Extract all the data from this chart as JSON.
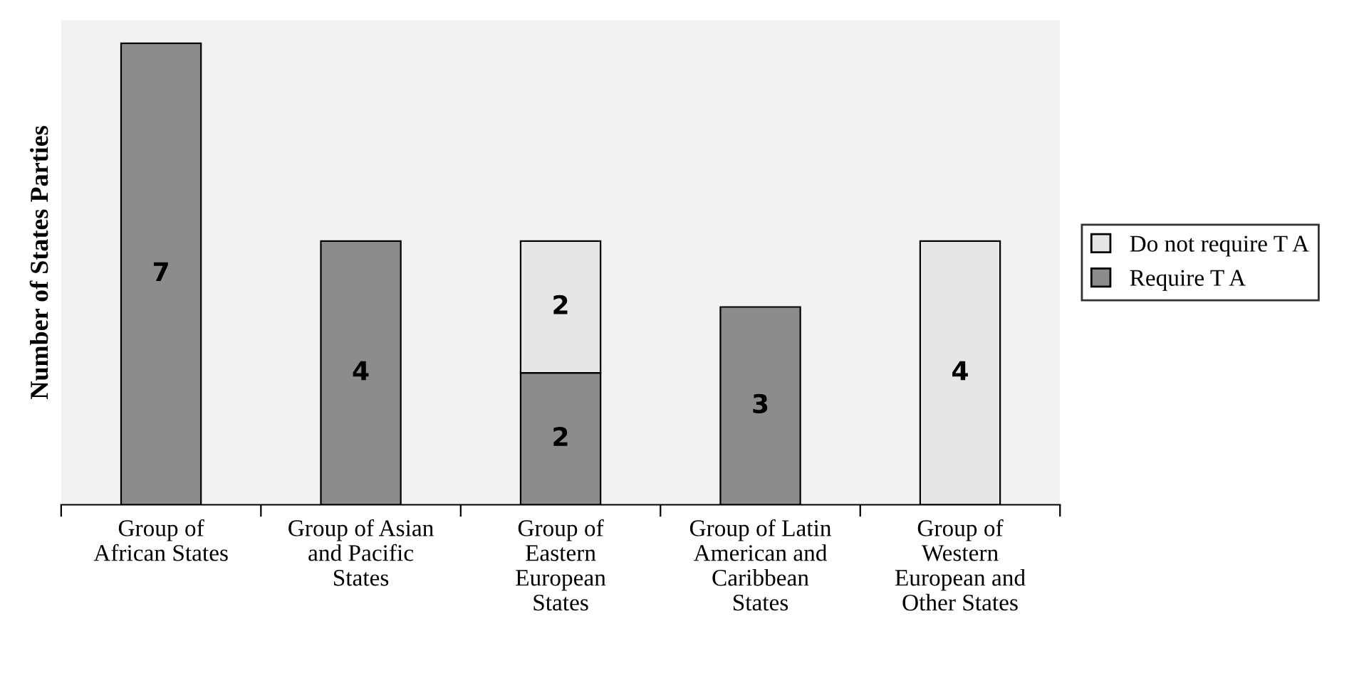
{
  "chart_data": {
    "type": "bar",
    "stacked": true,
    "ylabel": "Number of States Parties",
    "categories": [
      "Group of\nAfrican States",
      "Group of Asian\nand Pacific\nStates",
      "Group of\nEastern\nEuropean\nStates",
      "Group of Latin\nAmerican and\nCaribbean\nStates",
      "Group of\nWestern\nEuropean and\nOther States"
    ],
    "series": [
      {
        "name": "Require T A",
        "color": "#8c8c8c",
        "values": [
          7,
          4,
          2,
          3,
          null
        ]
      },
      {
        "name": "Do not require T A",
        "color": "#e6e6e6",
        "values": [
          null,
          null,
          2,
          null,
          4
        ]
      }
    ],
    "data_labels": true,
    "legend": "right",
    "grid": false
  }
}
